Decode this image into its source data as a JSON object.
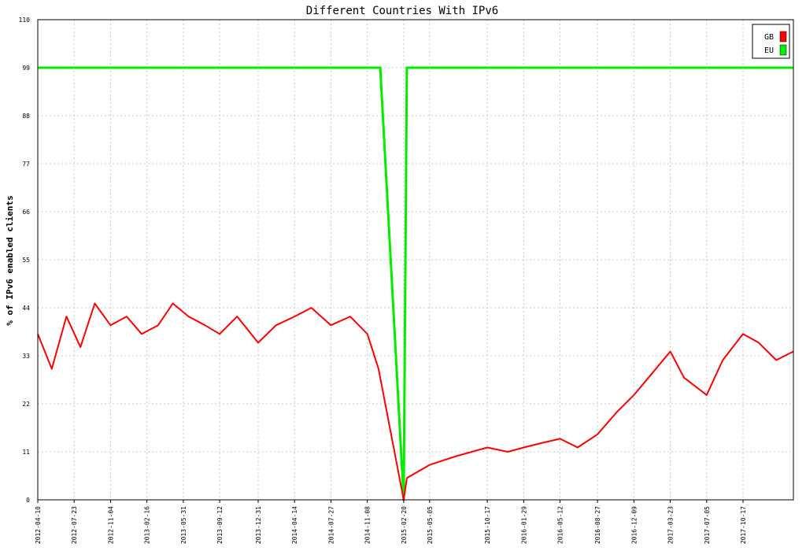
{
  "chart_data": {
    "type": "line",
    "title": "Different Countries With IPv6",
    "xlabel": "",
    "ylabel": "% of IPv6 enabled clients",
    "ylim": [
      0,
      110
    ],
    "yticks": [
      0,
      11,
      22,
      33,
      44,
      55,
      66,
      77,
      88,
      99,
      110
    ],
    "xlim": [
      "2012-04-10",
      "2018-03-10"
    ],
    "xticks": [
      "2012-04-10",
      "2012-07-23",
      "2012-11-04",
      "2013-02-16",
      "2013-05-31",
      "2013-09-12",
      "2013-12-31",
      "2014-04-14",
      "2014-07-27",
      "2014-11-08",
      "2015-02-20",
      "2015-05-05",
      "2015-10-17",
      "2016-01-29",
      "2016-05-12",
      "2016-08-27",
      "2016-12-09",
      "2017-03-23",
      "2017-07-05",
      "2017-10-17"
    ],
    "grid": true,
    "legend_position": "top-right",
    "series": [
      {
        "name": "GB",
        "color": "#ff0000",
        "points": [
          [
            "2012-04-10",
            38
          ],
          [
            "2012-05-20",
            30
          ],
          [
            "2012-07-01",
            42
          ],
          [
            "2012-08-10",
            35
          ],
          [
            "2012-09-20",
            45
          ],
          [
            "2012-11-04",
            40
          ],
          [
            "2012-12-20",
            42
          ],
          [
            "2013-02-01",
            38
          ],
          [
            "2013-03-20",
            40
          ],
          [
            "2013-05-01",
            45
          ],
          [
            "2013-06-15",
            42
          ],
          [
            "2013-08-01",
            40
          ],
          [
            "2013-09-12",
            38
          ],
          [
            "2013-11-01",
            42
          ],
          [
            "2013-12-31",
            36
          ],
          [
            "2014-02-20",
            40
          ],
          [
            "2014-04-14",
            42
          ],
          [
            "2014-06-01",
            44
          ],
          [
            "2014-07-27",
            40
          ],
          [
            "2014-09-20",
            42
          ],
          [
            "2014-11-08",
            38
          ],
          [
            "2014-12-10",
            30
          ],
          [
            "2015-02-20",
            0
          ],
          [
            "2015-03-01",
            5
          ],
          [
            "2015-05-05",
            8
          ],
          [
            "2015-07-20",
            10
          ],
          [
            "2015-10-17",
            12
          ],
          [
            "2015-12-15",
            11
          ],
          [
            "2016-01-29",
            12
          ],
          [
            "2016-03-20",
            13
          ],
          [
            "2016-05-12",
            14
          ],
          [
            "2016-07-01",
            12
          ],
          [
            "2016-08-27",
            15
          ],
          [
            "2016-10-20",
            20
          ],
          [
            "2016-12-09",
            24
          ],
          [
            "2017-01-20",
            28
          ],
          [
            "2017-03-23",
            34
          ],
          [
            "2017-05-01",
            28
          ],
          [
            "2017-07-05",
            24
          ],
          [
            "2017-08-20",
            32
          ],
          [
            "2017-10-17",
            38
          ],
          [
            "2017-12-01",
            36
          ],
          [
            "2018-01-20",
            32
          ],
          [
            "2018-03-10",
            34
          ]
        ]
      },
      {
        "name": "EU",
        "color": "#00ee00",
        "points": [
          [
            "2012-04-10",
            99
          ],
          [
            "2014-12-15",
            99
          ],
          [
            "2015-02-20",
            0
          ],
          [
            "2015-03-01",
            99
          ],
          [
            "2016-08-27",
            99
          ],
          [
            "2017-03-23",
            99
          ],
          [
            "2017-07-05",
            99
          ],
          [
            "2017-10-17",
            99
          ],
          [
            "2018-03-10",
            99
          ]
        ]
      }
    ]
  }
}
